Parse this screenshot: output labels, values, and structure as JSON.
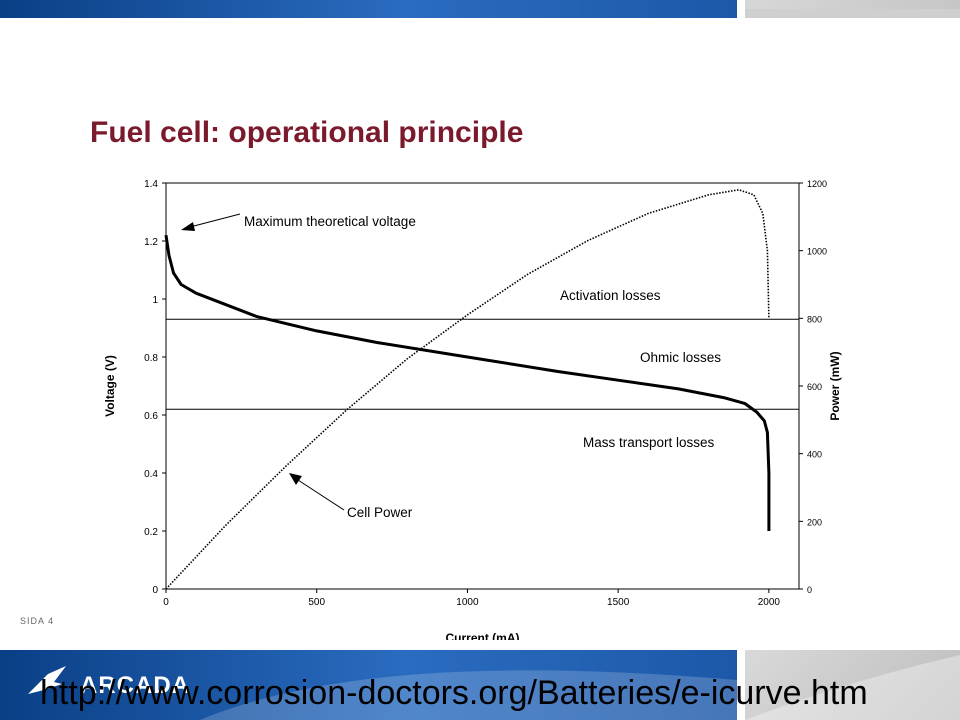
{
  "slide": {
    "title": "Fuel cell: operational principle",
    "slide_number": "SIDA  4",
    "url": "http://www.corrosion-doctors.org/Batteries/e-icurve.htm",
    "logo_text": "ARCADA",
    "colors": {
      "title": "#7b1a2c",
      "band_blue": "#1d58a8",
      "band_gray": "#c8c8c8"
    }
  },
  "chart_data": {
    "type": "line",
    "xlabel": "Current (mA)",
    "ylabel_left": "Voltage (V)",
    "ylabel_right": "Power (mW)",
    "xlim": [
      0,
      2100
    ],
    "ylim_left": [
      0,
      1.4
    ],
    "ylim_right": [
      0,
      1200
    ],
    "xticks": [
      0,
      500,
      1000,
      1500,
      2000
    ],
    "yticks_left": [
      0,
      0.2,
      0.4,
      0.6,
      0.8,
      1,
      1.2,
      1.4
    ],
    "yticks_right": [
      0,
      200,
      400,
      600,
      800,
      1000,
      1200
    ],
    "xtick_labels": [
      "0",
      "500",
      "1000",
      "1500",
      "2000"
    ],
    "ytick_labels_left": [
      "0",
      "0.2",
      "0.4",
      "0.6",
      "0.8",
      "1",
      "1.2",
      "1.4"
    ],
    "ytick_labels_right": [
      "0",
      "200",
      "400",
      "600",
      "800",
      "1000",
      "1200"
    ],
    "grid": false,
    "series": [
      {
        "axis": "left",
        "style": "solid",
        "x": [
          0,
          10,
          25,
          50,
          100,
          200,
          300,
          500,
          700,
          1000,
          1300,
          1500,
          1700,
          1850,
          1920,
          1960,
          1985,
          1995,
          2000,
          2000
        ],
        "y": [
          1.22,
          1.15,
          1.09,
          1.05,
          1.02,
          0.98,
          0.94,
          0.89,
          0.85,
          0.8,
          0.75,
          0.72,
          0.69,
          0.66,
          0.64,
          0.61,
          0.58,
          0.54,
          0.4,
          0.2
        ]
      },
      {
        "axis": "right",
        "style": "dotted",
        "x": [
          0,
          200,
          400,
          600,
          800,
          1000,
          1200,
          1400,
          1600,
          1800,
          1900,
          1950,
          1980,
          1995,
          2000
        ],
        "y": [
          0,
          190,
          365,
          530,
          680,
          810,
          930,
          1030,
          1110,
          1165,
          1180,
          1165,
          1110,
          1000,
          800
        ]
      }
    ],
    "reference_lines_v": [
      0.93,
      0.62
    ],
    "annotations": [
      {
        "text": "Maximum theoretical voltage"
      },
      {
        "text": "Activation losses"
      },
      {
        "text": "Ohmic losses"
      },
      {
        "text": "Mass transport losses"
      },
      {
        "text": "Cell Power"
      }
    ]
  }
}
